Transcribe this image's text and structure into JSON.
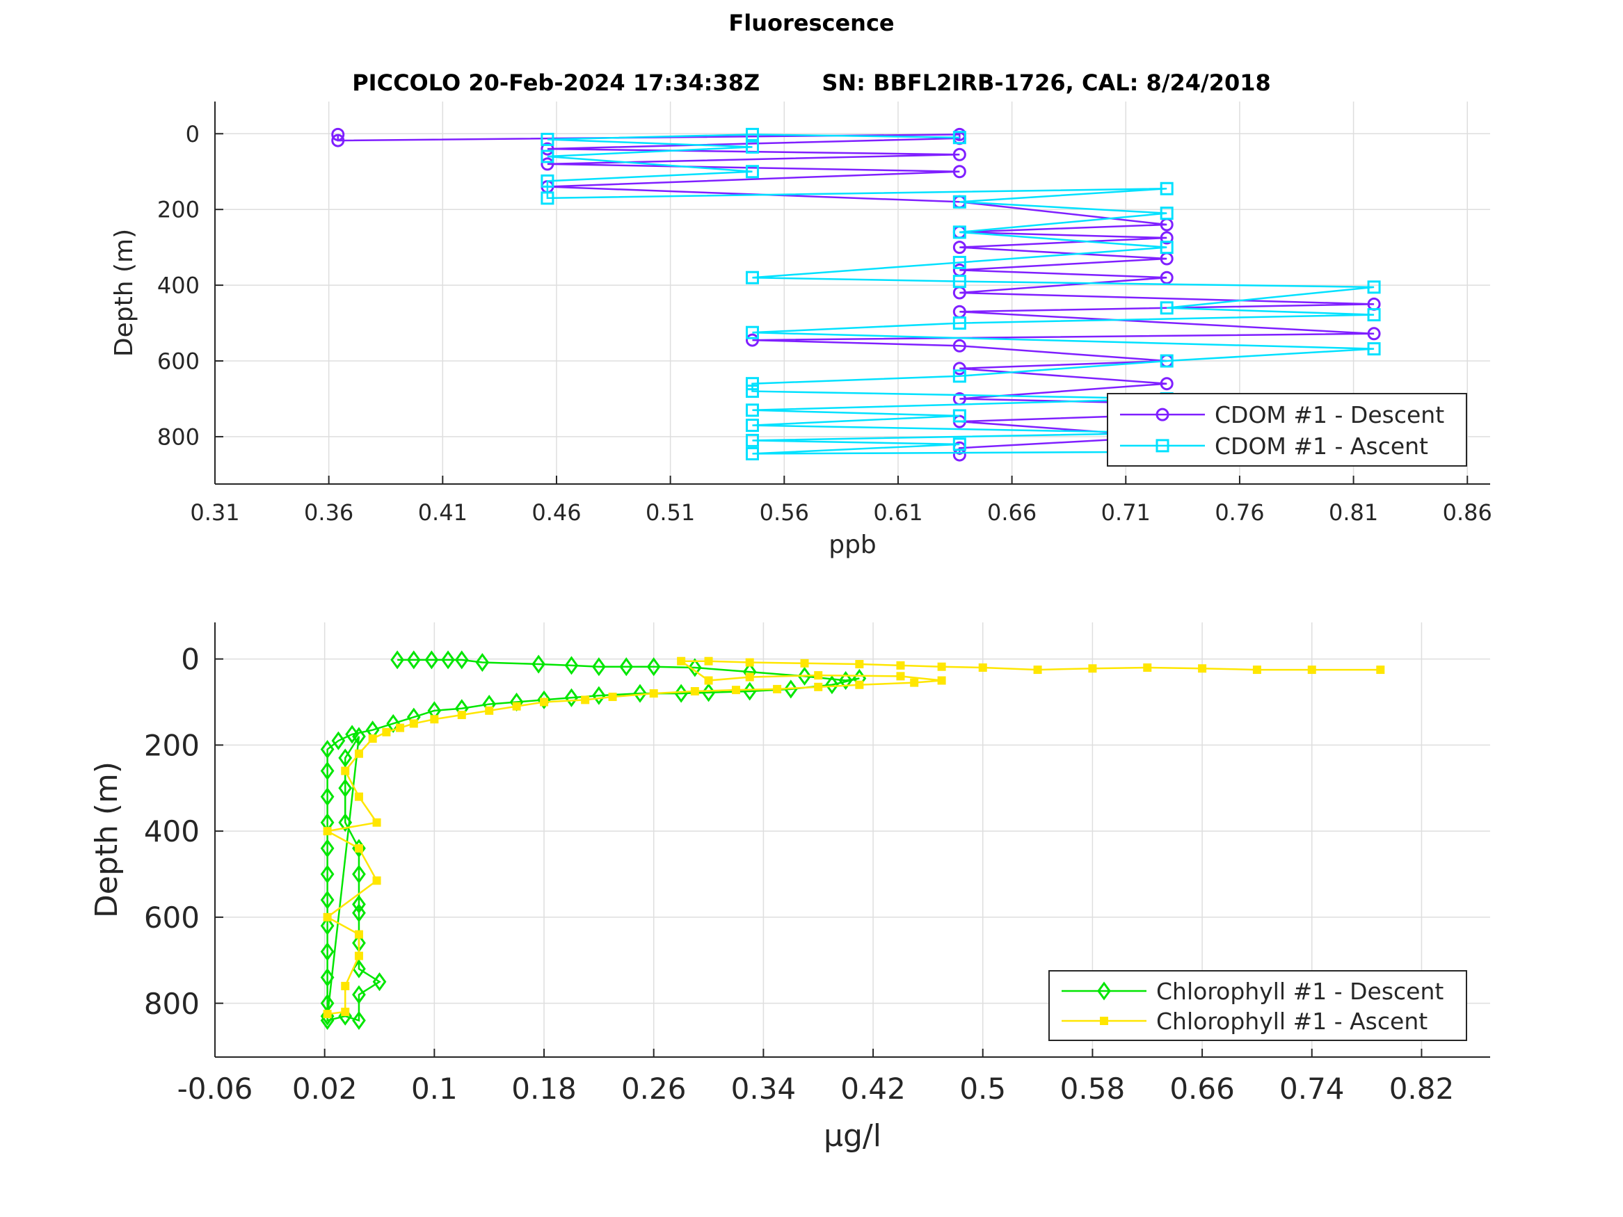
{
  "figure": {
    "title": "Fluorescence",
    "subtitle": "PICCOLO 20-Feb-2024 17:34:38Z        SN: BBFL2IRB-1726, CAL: 8/24/2018"
  },
  "chart_data": [
    {
      "type": "line",
      "xlabel": "ppb",
      "ylabel": "Depth (m)",
      "xlim": [
        0.31,
        0.87
      ],
      "ylim": [
        -85,
        925
      ],
      "y_reversed": true,
      "grid": true,
      "xticks": [
        "0.31",
        "0.36",
        "0.41",
        "0.46",
        "0.51",
        "0.56",
        "0.61",
        "0.66",
        "0.71",
        "0.76",
        "0.81",
        "0.86"
      ],
      "yticks": [
        "0",
        "200",
        "400",
        "600",
        "800"
      ],
      "legend_position": "bottom-right",
      "series": [
        {
          "name": "CDOM #1 - Descent",
          "color": "#7f1fff",
          "marker": "circle",
          "points": [
            [
              0.364,
              2
            ],
            [
              0.364,
              18
            ],
            [
              0.637,
              2
            ],
            [
              0.637,
              12
            ],
            [
              0.456,
              40
            ],
            [
              0.637,
              55
            ],
            [
              0.456,
              80
            ],
            [
              0.637,
              100
            ],
            [
              0.456,
              140
            ],
            [
              0.637,
              180
            ],
            [
              0.728,
              240
            ],
            [
              0.637,
              260
            ],
            [
              0.728,
              275
            ],
            [
              0.637,
              300
            ],
            [
              0.728,
              330
            ],
            [
              0.637,
              360
            ],
            [
              0.728,
              380
            ],
            [
              0.637,
              420
            ],
            [
              0.819,
              450
            ],
            [
              0.637,
              470
            ],
            [
              0.819,
              528
            ],
            [
              0.546,
              545
            ],
            [
              0.637,
              560
            ],
            [
              0.728,
              600
            ],
            [
              0.637,
              620
            ],
            [
              0.728,
              660
            ],
            [
              0.637,
              700
            ],
            [
              0.819,
              725
            ],
            [
              0.728,
              742
            ],
            [
              0.637,
              760
            ],
            [
              0.728,
              800
            ],
            [
              0.637,
              830
            ],
            [
              0.637,
              848
            ]
          ]
        },
        {
          "name": "CDOM #1 - Ascent",
          "color": "#00e1ff",
          "marker": "square",
          "points": [
            [
              0.728,
              840
            ],
            [
              0.546,
              845
            ],
            [
              0.637,
              820
            ],
            [
              0.546,
              810
            ],
            [
              0.728,
              790
            ],
            [
              0.546,
              770
            ],
            [
              0.637,
              745
            ],
            [
              0.546,
              730
            ],
            [
              0.728,
              700
            ],
            [
              0.546,
              680
            ],
            [
              0.546,
              660
            ],
            [
              0.637,
              640
            ],
            [
              0.728,
              600
            ],
            [
              0.819,
              568
            ],
            [
              0.546,
              525
            ],
            [
              0.637,
              500
            ],
            [
              0.819,
              478
            ],
            [
              0.728,
              460
            ],
            [
              0.819,
              405
            ],
            [
              0.637,
              390
            ],
            [
              0.546,
              380
            ],
            [
              0.637,
              340
            ],
            [
              0.728,
              300
            ],
            [
              0.637,
              260
            ],
            [
              0.728,
              210
            ],
            [
              0.637,
              180
            ],
            [
              0.728,
              145
            ],
            [
              0.456,
              170
            ],
            [
              0.456,
              125
            ],
            [
              0.546,
              100
            ],
            [
              0.456,
              60
            ],
            [
              0.546,
              35
            ],
            [
              0.456,
              15
            ],
            [
              0.546,
              2
            ],
            [
              0.637,
              10
            ]
          ]
        }
      ]
    },
    {
      "type": "line",
      "xlabel": "μg/l",
      "ylabel": "Depth (m)",
      "xlim": [
        -0.06,
        0.87
      ],
      "ylim": [
        -85,
        925
      ],
      "y_reversed": true,
      "grid": true,
      "xticks": [
        "-0.06",
        "0.02",
        "0.1",
        "0.18",
        "0.26",
        "0.34",
        "0.42",
        "0.5",
        "0.58",
        "0.66",
        "0.74",
        "0.82"
      ],
      "yticks": [
        "0",
        "200",
        "400",
        "600",
        "800"
      ],
      "legend_position": "bottom-right",
      "series": [
        {
          "name": "Chlorophyll #1 - Descent",
          "color": "#00e600",
          "marker": "diamond",
          "points": [
            [
              0.073,
              2
            ],
            [
              0.085,
              2
            ],
            [
              0.098,
              2
            ],
            [
              0.11,
              2
            ],
            [
              0.12,
              2
            ],
            [
              0.135,
              8
            ],
            [
              0.176,
              12
            ],
            [
              0.2,
              15
            ],
            [
              0.22,
              18
            ],
            [
              0.24,
              18
            ],
            [
              0.26,
              18
            ],
            [
              0.29,
              20
            ],
            [
              0.33,
              30
            ],
            [
              0.37,
              40
            ],
            [
              0.4,
              50
            ],
            [
              0.41,
              45
            ],
            [
              0.39,
              60
            ],
            [
              0.36,
              70
            ],
            [
              0.33,
              75
            ],
            [
              0.3,
              78
            ],
            [
              0.28,
              80
            ],
            [
              0.25,
              80
            ],
            [
              0.22,
              85
            ],
            [
              0.2,
              90
            ],
            [
              0.18,
              95
            ],
            [
              0.16,
              100
            ],
            [
              0.14,
              105
            ],
            [
              0.12,
              115
            ],
            [
              0.1,
              120
            ],
            [
              0.085,
              135
            ],
            [
              0.07,
              150
            ],
            [
              0.055,
              165
            ],
            [
              0.04,
              175
            ],
            [
              0.03,
              190
            ],
            [
              0.022,
              210
            ],
            [
              0.022,
              260
            ],
            [
              0.022,
              320
            ],
            [
              0.022,
              380
            ],
            [
              0.022,
              440
            ],
            [
              0.022,
              500
            ],
            [
              0.022,
              560
            ],
            [
              0.022,
              620
            ],
            [
              0.022,
              680
            ],
            [
              0.022,
              740
            ],
            [
              0.022,
              800
            ],
            [
              0.022,
              840
            ],
            [
              0.035,
              830
            ],
            [
              0.045,
              840
            ],
            [
              0.045,
              780
            ],
            [
              0.06,
              750
            ],
            [
              0.045,
              720
            ],
            [
              0.045,
              660
            ],
            [
              0.045,
              590
            ],
            [
              0.045,
              570
            ],
            [
              0.045,
              500
            ],
            [
              0.045,
              440
            ],
            [
              0.035,
              380
            ],
            [
              0.035,
              300
            ],
            [
              0.035,
              230
            ],
            [
              0.045,
              180
            ],
            [
              0.022,
              830
            ]
          ]
        },
        {
          "name": "Chlorophyll #1 - Ascent",
          "color": "#ffe600",
          "marker": "square",
          "points": [
            [
              0.022,
              825
            ],
            [
              0.035,
              820
            ],
            [
              0.035,
              760
            ],
            [
              0.045,
              690
            ],
            [
              0.045,
              640
            ],
            [
              0.022,
              600
            ],
            [
              0.058,
              515
            ],
            [
              0.045,
              440
            ],
            [
              0.022,
              400
            ],
            [
              0.058,
              380
            ],
            [
              0.045,
              320
            ],
            [
              0.035,
              260
            ],
            [
              0.045,
              220
            ],
            [
              0.055,
              185
            ],
            [
              0.065,
              170
            ],
            [
              0.075,
              160
            ],
            [
              0.085,
              150
            ],
            [
              0.1,
              140
            ],
            [
              0.12,
              130
            ],
            [
              0.14,
              120
            ],
            [
              0.16,
              110
            ],
            [
              0.18,
              100
            ],
            [
              0.21,
              95
            ],
            [
              0.23,
              88
            ],
            [
              0.26,
              80
            ],
            [
              0.29,
              75
            ],
            [
              0.32,
              72
            ],
            [
              0.35,
              70
            ],
            [
              0.38,
              65
            ],
            [
              0.41,
              60
            ],
            [
              0.45,
              55
            ],
            [
              0.47,
              50
            ],
            [
              0.44,
              40
            ],
            [
              0.38,
              38
            ],
            [
              0.33,
              42
            ],
            [
              0.3,
              50
            ],
            [
              0.28,
              5
            ],
            [
              0.3,
              5
            ],
            [
              0.33,
              8
            ],
            [
              0.37,
              10
            ],
            [
              0.41,
              12
            ],
            [
              0.44,
              15
            ],
            [
              0.47,
              18
            ],
            [
              0.5,
              20
            ],
            [
              0.54,
              25
            ],
            [
              0.58,
              22
            ],
            [
              0.62,
              20
            ],
            [
              0.66,
              22
            ],
            [
              0.7,
              25
            ],
            [
              0.74,
              25
            ],
            [
              0.79,
              25
            ]
          ]
        }
      ]
    }
  ]
}
